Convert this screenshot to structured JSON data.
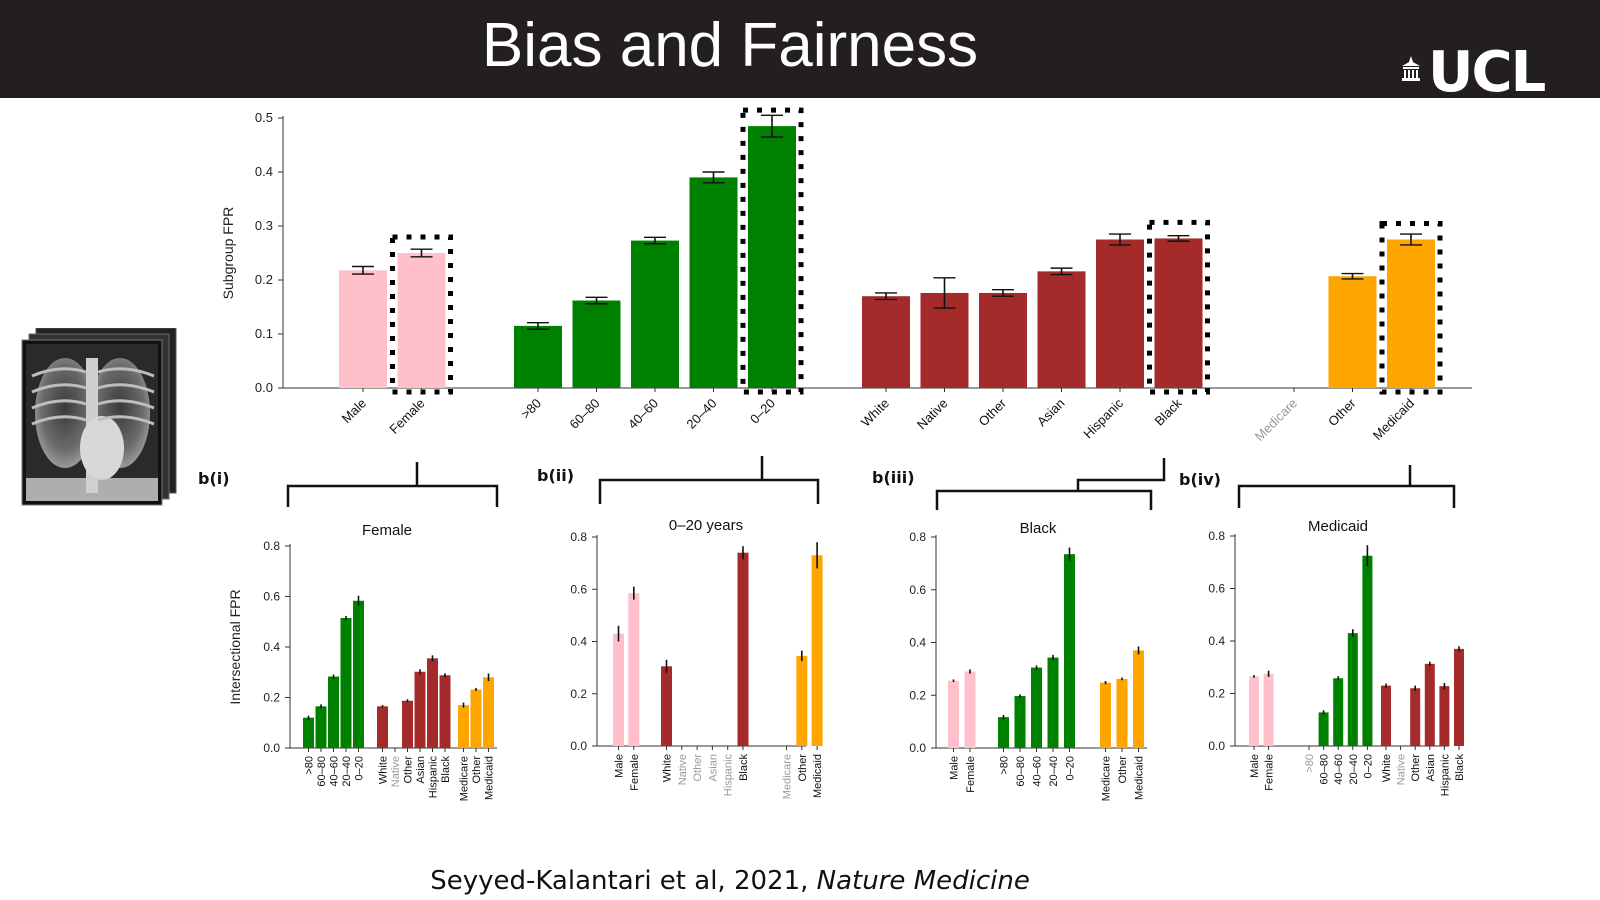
{
  "header": {
    "title": "Bias and Fairness",
    "logo_text": "UCL"
  },
  "colors": {
    "header_bg": "#231f20",
    "pink": "#ffc0cb",
    "green": "#008000",
    "darkred": "#a52a2a",
    "orange": "#ffa500",
    "disabled": "#999999"
  },
  "chart_data": [
    {
      "type": "bar",
      "panel": "a",
      "ylabel": "Subgroup FPR",
      "ylim": [
        0,
        0.5
      ],
      "yticks": [
        "0.0",
        "0.1",
        "0.2",
        "0.3",
        "0.4",
        "0.5"
      ],
      "groups": [
        {
          "color": "pink",
          "bars": [
            {
              "label": "Male",
              "value": 0.218,
              "err": 0.007
            },
            {
              "label": "Female",
              "value": 0.25,
              "err": 0.007,
              "highlight": true
            }
          ]
        },
        {
          "color": "green",
          "bars": [
            {
              "label": ">80",
              "value": 0.115,
              "err": 0.006
            },
            {
              "label": "60–80",
              "value": 0.162,
              "err": 0.006
            },
            {
              "label": "40–60",
              "value": 0.273,
              "err": 0.006
            },
            {
              "label": "20–40",
              "value": 0.39,
              "err": 0.01
            },
            {
              "label": "0–20",
              "value": 0.485,
              "err": 0.02,
              "highlight": true
            }
          ]
        },
        {
          "color": "darkred",
          "bars": [
            {
              "label": "White",
              "value": 0.17,
              "err": 0.006
            },
            {
              "label": "Native",
              "value": 0.176,
              "err": 0.028
            },
            {
              "label": "Other",
              "value": 0.176,
              "err": 0.006
            },
            {
              "label": "Asian",
              "value": 0.216,
              "err": 0.006
            },
            {
              "label": "Hispanic",
              "value": 0.275,
              "err": 0.01
            },
            {
              "label": "Black",
              "value": 0.277,
              "err": 0.005,
              "highlight": true
            }
          ]
        },
        {
          "color": "orange",
          "bars": [
            {
              "label": "Medicare",
              "value": null,
              "err": 0,
              "disabled": true
            },
            {
              "label": "Other",
              "value": 0.207,
              "err": 0.005
            },
            {
              "label": "Medicaid",
              "value": 0.275,
              "err": 0.01,
              "highlight": true
            }
          ]
        }
      ]
    },
    {
      "type": "bar",
      "panel": "b(i)",
      "title": "Female",
      "ylabel": "Intersectional FPR",
      "ylim": [
        0,
        0.8
      ],
      "yticks": [
        "0.0",
        "0.2",
        "0.4",
        "0.6",
        "0.8"
      ],
      "groups": [
        {
          "color": "green",
          "bars": [
            {
              "label": ">80",
              "value": 0.12,
              "err": 0.008
            },
            {
              "label": "60–80",
              "value": 0.165,
              "err": 0.008
            },
            {
              "label": "40–60",
              "value": 0.283,
              "err": 0.008
            },
            {
              "label": "20–40",
              "value": 0.515,
              "err": 0.008
            },
            {
              "label": "0–20",
              "value": 0.583,
              "err": 0.02
            }
          ]
        },
        {
          "color": "darkred",
          "bars": [
            {
              "label": "White",
              "value": 0.165,
              "err": 0.005
            },
            {
              "label": "Native",
              "value": null,
              "disabled": true
            },
            {
              "label": "Other",
              "value": 0.187,
              "err": 0.006
            },
            {
              "label": "Asian",
              "value": 0.302,
              "err": 0.01
            },
            {
              "label": "Hispanic",
              "value": 0.355,
              "err": 0.012
            },
            {
              "label": "Black",
              "value": 0.288,
              "err": 0.008
            }
          ]
        },
        {
          "color": "orange",
          "bars": [
            {
              "label": "Medicare",
              "value": 0.17,
              "err": 0.01
            },
            {
              "label": "Other",
              "value": 0.232,
              "err": 0.006
            },
            {
              "label": "Medicaid",
              "value": 0.28,
              "err": 0.015
            }
          ]
        }
      ]
    },
    {
      "type": "bar",
      "panel": "b(ii)",
      "title": "0–20 years",
      "ylim": [
        0,
        0.8
      ],
      "yticks": [
        "0.0",
        "0.2",
        "0.4",
        "0.6",
        "0.8"
      ],
      "groups": [
        {
          "color": "pink",
          "bars": [
            {
              "label": "Male",
              "value": 0.43,
              "err": 0.03
            },
            {
              "label": "Female",
              "value": 0.585,
              "err": 0.025
            }
          ]
        },
        {
          "color": "darkred",
          "bars": [
            {
              "label": "White",
              "value": 0.305,
              "err": 0.025
            },
            {
              "label": "Native",
              "value": null,
              "disabled": true
            },
            {
              "label": "Other",
              "value": null,
              "disabled": true
            },
            {
              "label": "Asian",
              "value": null,
              "disabled": true
            },
            {
              "label": "Hispanic",
              "value": null,
              "disabled": true
            },
            {
              "label": "Black",
              "value": 0.74,
              "err": 0.025
            }
          ]
        },
        {
          "color": "orange",
          "bars": [
            {
              "label": "Medicare",
              "value": null,
              "disabled": true
            },
            {
              "label": "Other",
              "value": 0.345,
              "err": 0.02
            },
            {
              "label": "Medicaid",
              "value": 0.73,
              "err": 0.05
            }
          ]
        }
      ]
    },
    {
      "type": "bar",
      "panel": "b(iii)",
      "title": "Black",
      "ylim": [
        0,
        0.8
      ],
      "yticks": [
        "0.0",
        "0.2",
        "0.4",
        "0.6",
        "0.8"
      ],
      "groups": [
        {
          "color": "pink",
          "bars": [
            {
              "label": "Male",
              "value": 0.255,
              "err": 0.005
            },
            {
              "label": "Female",
              "value": 0.29,
              "err": 0.008
            }
          ]
        },
        {
          "color": "green",
          "bars": [
            {
              "label": ">80",
              "value": 0.117,
              "err": 0.008
            },
            {
              "label": "60–80",
              "value": 0.197,
              "err": 0.006
            },
            {
              "label": "40–60",
              "value": 0.305,
              "err": 0.008
            },
            {
              "label": "20–40",
              "value": 0.343,
              "err": 0.01
            },
            {
              "label": "0–20",
              "value": 0.735,
              "err": 0.025
            }
          ]
        },
        {
          "color": "orange",
          "bars": [
            {
              "label": "Medicare",
              "value": 0.248,
              "err": 0.006
            },
            {
              "label": "Other",
              "value": 0.262,
              "err": 0.005
            },
            {
              "label": "Medicaid",
              "value": 0.37,
              "err": 0.015
            }
          ]
        }
      ]
    },
    {
      "type": "bar",
      "panel": "b(iv)",
      "title": "Medicaid",
      "ylim": [
        0,
        0.8
      ],
      "yticks": [
        "0.0",
        "0.2",
        "0.4",
        "0.6",
        "0.8"
      ],
      "groups": [
        {
          "color": "pink",
          "bars": [
            {
              "label": "Male",
              "value": 0.265,
              "err": 0.005
            },
            {
              "label": "Female",
              "value": 0.275,
              "err": 0.012
            }
          ]
        },
        {
          "color": "green",
          "bars": [
            {
              "label": ">80",
              "value": null,
              "disabled": true
            },
            {
              "label": "60–80",
              "value": 0.128,
              "err": 0.008
            },
            {
              "label": "40–60",
              "value": 0.258,
              "err": 0.008
            },
            {
              "label": "20–40",
              "value": 0.43,
              "err": 0.015
            },
            {
              "label": "0–20",
              "value": 0.725,
              "err": 0.04
            }
          ]
        },
        {
          "color": "darkred",
          "bars": [
            {
              "label": "White",
              "value": 0.23,
              "err": 0.008
            },
            {
              "label": "Native",
              "value": null,
              "disabled": true
            },
            {
              "label": "Other",
              "value": 0.22,
              "err": 0.01
            },
            {
              "label": "Asian",
              "value": 0.313,
              "err": 0.008
            },
            {
              "label": "Hispanic",
              "value": 0.228,
              "err": 0.012
            },
            {
              "label": "Black",
              "value": 0.37,
              "err": 0.01
            }
          ]
        }
      ]
    }
  ],
  "citation": {
    "authors": "Seyyed-Kalantari et al, 2021, ",
    "journal": "Nature Medicine"
  }
}
